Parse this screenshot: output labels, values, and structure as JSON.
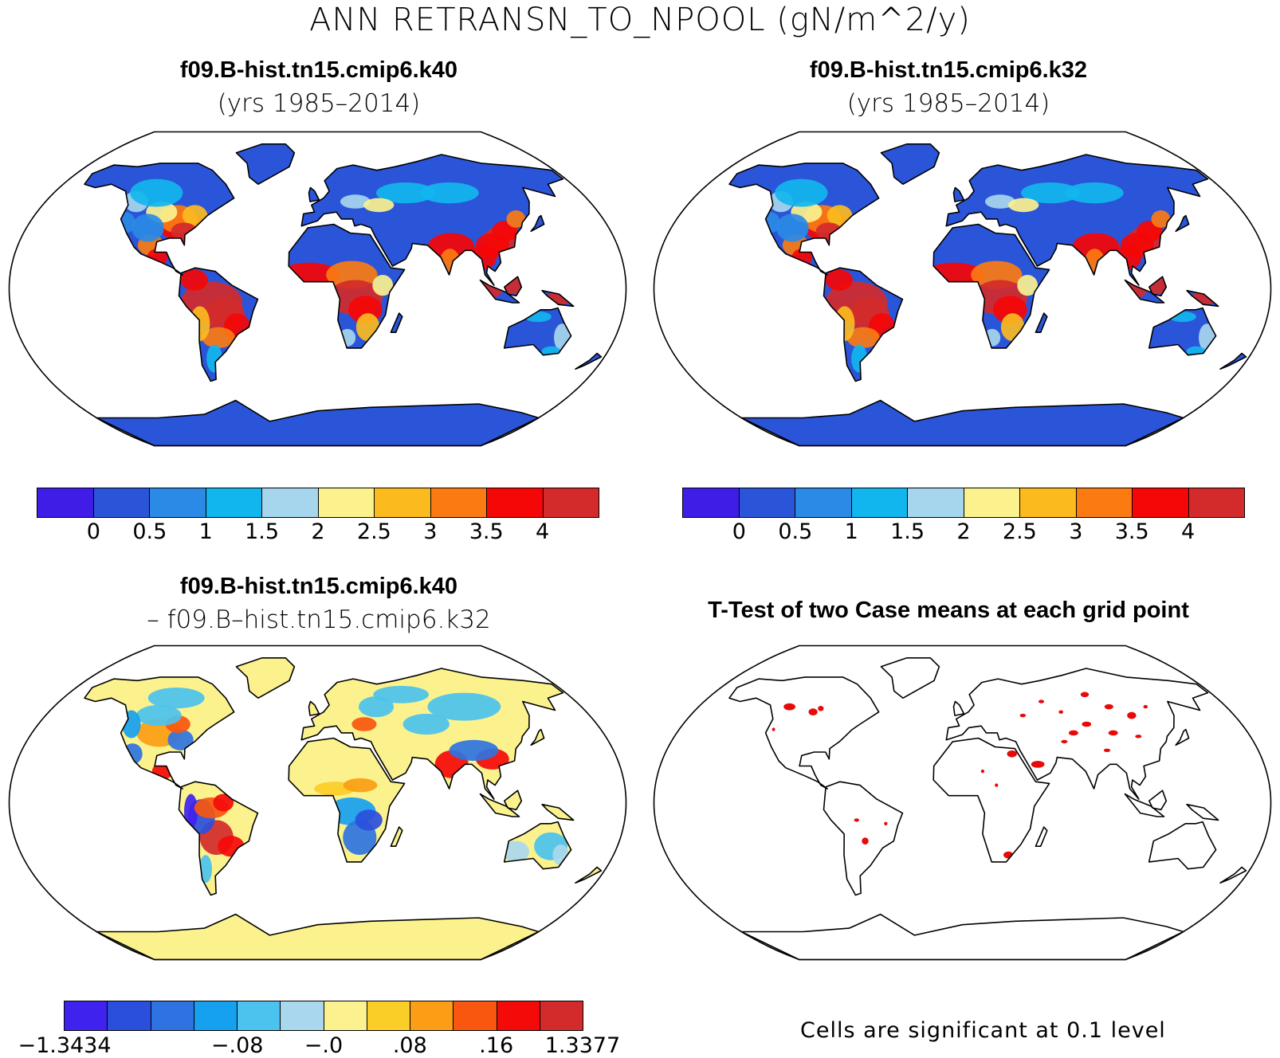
{
  "figure": {
    "main_title": "ANN RETRANSN_TO_NPOOL (gN/m^2/y)"
  },
  "panels": {
    "top_left": {
      "title": "f09.B-hist.tn15.cmip6.k40",
      "subtitle": "(yrs 1985–2014)"
    },
    "top_right": {
      "title": "f09.B-hist.tn15.cmip6.k32",
      "subtitle": "(yrs 1985–2014)"
    },
    "bottom_left": {
      "title": "f09.B-hist.tn15.cmip6.k40",
      "subtitle": "– f09.B–hist.tn15.cmip6.k32"
    },
    "bottom_right": {
      "title": "T-Test of two Case means at each grid point",
      "note": "Cells are significant at 0.1 level"
    }
  },
  "colorbars": {
    "mean": {
      "colors": [
        "#3f1de6",
        "#2b55d9",
        "#2a8ae6",
        "#12b6ee",
        "#a6d6ee",
        "#fbf28e",
        "#fbbb1f",
        "#fb7b12",
        "#f50707",
        "#d32b2b"
      ],
      "ticks": [
        "0",
        "0.5",
        "1",
        "1.5",
        "2",
        "2.5",
        "3",
        "3.5",
        "4"
      ]
    },
    "diff": {
      "colors": [
        "#4022ee",
        "#2a4fdc",
        "#2f73e2",
        "#16a0f0",
        "#4cc2ee",
        "#a9d8ee",
        "#fbf28f",
        "#fbcd27",
        "#fb9e15",
        "#f9570f",
        "#f50a0a",
        "#d32b2b"
      ],
      "ticks": [
        "−1.3434",
        "−.08",
        "−.0",
        ".08",
        ".16",
        "1.3377"
      ]
    }
  },
  "map_colors": {
    "land_default": "#3a5fde",
    "ocean": "#ffffff",
    "coast": "#000000",
    "significant": "#e80a0a",
    "diff_neutral": "#fbf28e"
  }
}
